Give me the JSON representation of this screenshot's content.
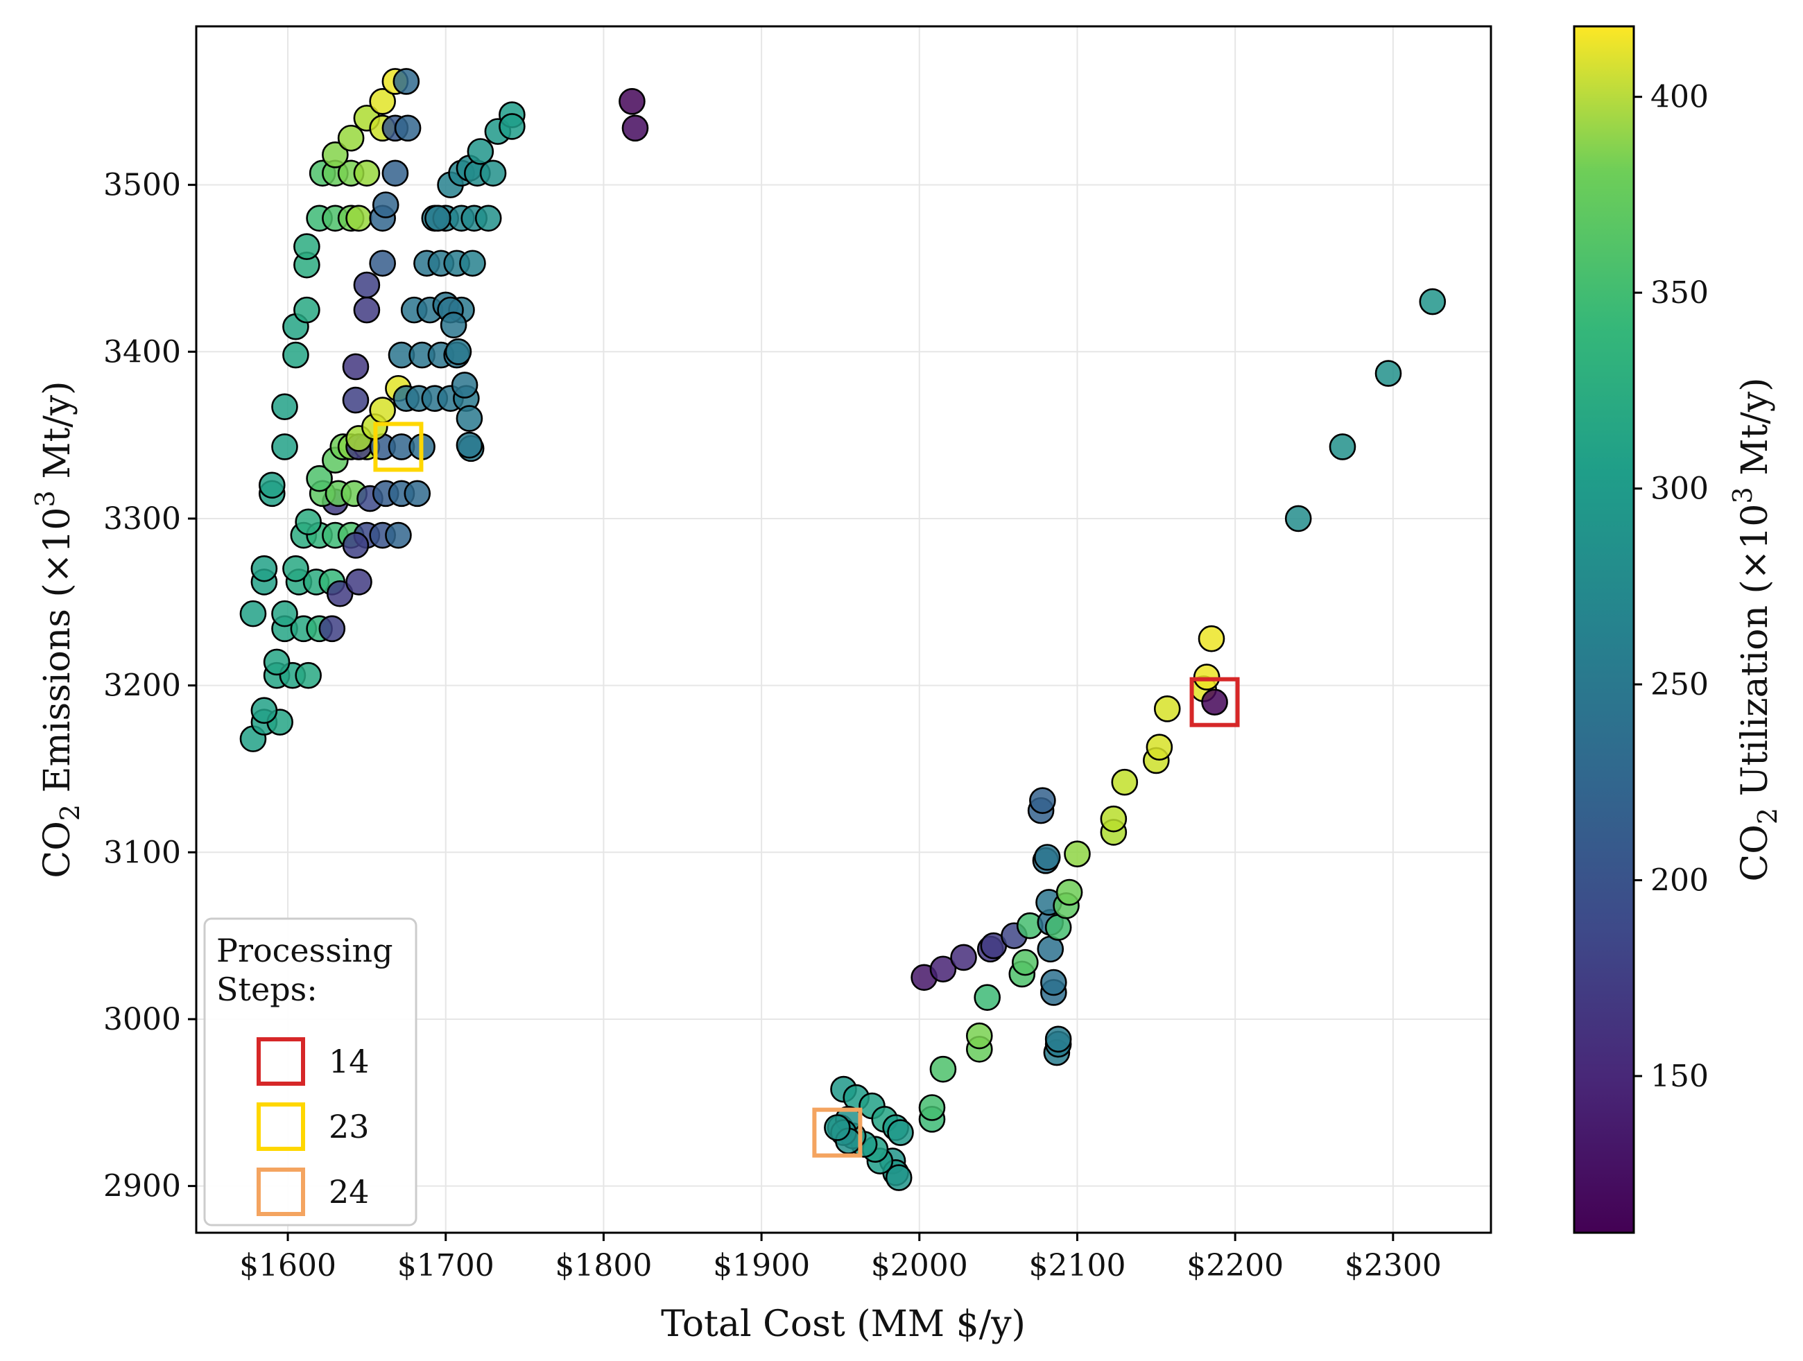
{
  "chart_data": {
    "type": "scatter",
    "title": "",
    "xlabel": "Total Cost (MM $/y)",
    "ylabel": {
      "prefix": "CO",
      "sub": "2",
      "mid": " Emissions (×10",
      "sup": "3",
      "suffix": " Mt/y)"
    },
    "xlim": [
      1542,
      2362
    ],
    "ylim": [
      2872,
      3595
    ],
    "xticks": [
      1600,
      1700,
      1800,
      1900,
      2000,
      2100,
      2200,
      2300
    ],
    "xtick_labels": [
      "$1600",
      "$1700",
      "$1800",
      "$1900",
      "$2000",
      "$2100",
      "$2200",
      "$2300"
    ],
    "yticks": [
      2900,
      3000,
      3100,
      3200,
      3300,
      3400,
      3500
    ],
    "ytick_labels": [
      "2900",
      "3000",
      "3100",
      "3200",
      "3300",
      "3400",
      "3500"
    ],
    "grid": true,
    "colorbar": {
      "label": {
        "prefix": "CO",
        "sub": "2",
        "mid": " Utilization (×10",
        "sup": "3",
        "suffix": " Mt/y)"
      },
      "colormap": "viridis",
      "range": [
        110,
        418
      ],
      "ticks": [
        150,
        200,
        250,
        300,
        350,
        400
      ],
      "tick_labels": [
        "150",
        "200",
        "250",
        "300",
        "350",
        "400"
      ]
    },
    "legend": {
      "title": "Processing\nSteps:",
      "placement": "lower-left",
      "entries": [
        {
          "label": "14",
          "color": "#d62728",
          "x": 2187,
          "y": 3190
        },
        {
          "label": "23",
          "color": "#ffd700",
          "x": 1670,
          "y": 3343
        },
        {
          "label": "24",
          "color": "#f4a460",
          "x": 1948,
          "y": 2932
        }
      ]
    },
    "points": [
      [
        1578,
        3168,
        285
      ],
      [
        1585,
        3178,
        285
      ],
      [
        1595,
        3178,
        290
      ],
      [
        1585,
        3185,
        285
      ],
      [
        1593,
        3206,
        290
      ],
      [
        1603,
        3206,
        290
      ],
      [
        1613,
        3206,
        295
      ],
      [
        1593,
        3214,
        290
      ],
      [
        1598,
        3234,
        290
      ],
      [
        1610,
        3234,
        295
      ],
      [
        1620,
        3234,
        310
      ],
      [
        1628,
        3234,
        170
      ],
      [
        1578,
        3243,
        285
      ],
      [
        1598,
        3243,
        290
      ],
      [
        1585,
        3262,
        285
      ],
      [
        1607,
        3262,
        295
      ],
      [
        1618,
        3262,
        300
      ],
      [
        1628,
        3262,
        315
      ],
      [
        1633,
        3255,
        165
      ],
      [
        1645,
        3262,
        165
      ],
      [
        1585,
        3270,
        285
      ],
      [
        1605,
        3270,
        295
      ],
      [
        1610,
        3290,
        300
      ],
      [
        1620,
        3290,
        310
      ],
      [
        1630,
        3290,
        320
      ],
      [
        1640,
        3290,
        330
      ],
      [
        1650,
        3290,
        180
      ],
      [
        1660,
        3290,
        190
      ],
      [
        1670,
        3290,
        210
      ],
      [
        1613,
        3298,
        300
      ],
      [
        1643,
        3284,
        170
      ],
      [
        1630,
        3310,
        165
      ],
      [
        1590,
        3315,
        285
      ],
      [
        1590,
        3320,
        285
      ],
      [
        1622,
        3315,
        340
      ],
      [
        1632,
        3315,
        345
      ],
      [
        1642,
        3315,
        350
      ],
      [
        1652,
        3312,
        180
      ],
      [
        1662,
        3315,
        200
      ],
      [
        1672,
        3315,
        210
      ],
      [
        1682,
        3315,
        215
      ],
      [
        1620,
        3324,
        330
      ],
      [
        1630,
        3335,
        340
      ],
      [
        1635,
        3343,
        350
      ],
      [
        1640,
        3343,
        360
      ],
      [
        1650,
        3343,
        380
      ],
      [
        1645,
        3343,
        165
      ],
      [
        1660,
        3343,
        200
      ],
      [
        1672,
        3343,
        210
      ],
      [
        1685,
        3343,
        220
      ],
      [
        1645,
        3348,
        375
      ],
      [
        1655,
        3355,
        390
      ],
      [
        1660,
        3365,
        400
      ],
      [
        1670,
        3378,
        405
      ],
      [
        1675,
        3372,
        230
      ],
      [
        1683,
        3372,
        230
      ],
      [
        1693,
        3372,
        230
      ],
      [
        1703,
        3372,
        230
      ],
      [
        1713,
        3372,
        235
      ],
      [
        1598,
        3343,
        285
      ],
      [
        1598,
        3367,
        285
      ],
      [
        1643,
        3371,
        170
      ],
      [
        1643,
        3391,
        160
      ],
      [
        1605,
        3398,
        290
      ],
      [
        1605,
        3415,
        290
      ],
      [
        1612,
        3425,
        295
      ],
      [
        1672,
        3398,
        230
      ],
      [
        1685,
        3398,
        230
      ],
      [
        1697,
        3398,
        230
      ],
      [
        1707,
        3398,
        230
      ],
      [
        1708,
        3400,
        235
      ],
      [
        1712,
        3380,
        230
      ],
      [
        1715,
        3360,
        235
      ],
      [
        1716,
        3342,
        240
      ],
      [
        1715,
        3344,
        235
      ],
      [
        1680,
        3425,
        230
      ],
      [
        1690,
        3425,
        230
      ],
      [
        1700,
        3428,
        230
      ],
      [
        1710,
        3425,
        235
      ],
      [
        1703,
        3425,
        230
      ],
      [
        1705,
        3416,
        230
      ],
      [
        1650,
        3425,
        165
      ],
      [
        1650,
        3440,
        170
      ],
      [
        1660,
        3453,
        200
      ],
      [
        1688,
        3453,
        230
      ],
      [
        1697,
        3453,
        235
      ],
      [
        1707,
        3453,
        240
      ],
      [
        1717,
        3453,
        245
      ],
      [
        1612,
        3452,
        300
      ],
      [
        1612,
        3463,
        300
      ],
      [
        1620,
        3480,
        320
      ],
      [
        1630,
        3480,
        330
      ],
      [
        1640,
        3480,
        350
      ],
      [
        1645,
        3480,
        370
      ],
      [
        1660,
        3480,
        210
      ],
      [
        1662,
        3488,
        210
      ],
      [
        1693,
        3480,
        240
      ],
      [
        1700,
        3480,
        245
      ],
      [
        1710,
        3480,
        250
      ],
      [
        1718,
        3480,
        255
      ],
      [
        1727,
        3480,
        265
      ],
      [
        1695,
        3480,
        240
      ],
      [
        1703,
        3500,
        245
      ],
      [
        1710,
        3507,
        250
      ],
      [
        1715,
        3510,
        255
      ],
      [
        1720,
        3507,
        260
      ],
      [
        1730,
        3507,
        265
      ],
      [
        1722,
        3520,
        270
      ],
      [
        1733,
        3532,
        275
      ],
      [
        1742,
        3542,
        280
      ],
      [
        1742,
        3535,
        280
      ],
      [
        1622,
        3507,
        330
      ],
      [
        1630,
        3507,
        345
      ],
      [
        1640,
        3507,
        355
      ],
      [
        1650,
        3507,
        370
      ],
      [
        1630,
        3518,
        360
      ],
      [
        1640,
        3528,
        370
      ],
      [
        1650,
        3540,
        380
      ],
      [
        1660,
        3534,
        395
      ],
      [
        1668,
        3534,
        195
      ],
      [
        1676,
        3534,
        210
      ],
      [
        1668,
        3507,
        205
      ],
      [
        1660,
        3550,
        405
      ],
      [
        1668,
        3562,
        410
      ],
      [
        1675,
        3562,
        215
      ],
      [
        1818,
        3550,
        115
      ],
      [
        1820,
        3534,
        120
      ],
      [
        2003,
        3025,
        130
      ],
      [
        2015,
        3030,
        140
      ],
      [
        2028,
        3037,
        150
      ],
      [
        2045,
        3042,
        160
      ],
      [
        2047,
        3044,
        165
      ],
      [
        2060,
        3050,
        175
      ],
      [
        2070,
        3056,
        325
      ],
      [
        2065,
        3027,
        330
      ],
      [
        2067,
        3034,
        335
      ],
      [
        2085,
        3016,
        220
      ],
      [
        2085,
        3022,
        225
      ],
      [
        2083,
        3042,
        225
      ],
      [
        2083,
        3058,
        225
      ],
      [
        2082,
        3070,
        230
      ],
      [
        2080,
        3095,
        225
      ],
      [
        2081,
        3097,
        230
      ],
      [
        2077,
        3125,
        205
      ],
      [
        2078,
        3131,
        205
      ],
      [
        2088,
        3055,
        325
      ],
      [
        2093,
        3068,
        340
      ],
      [
        2095,
        3076,
        350
      ],
      [
        2100,
        3099,
        365
      ],
      [
        2087,
        2980,
        240
      ],
      [
        2088,
        2985,
        240
      ],
      [
        2088,
        2988,
        240
      ],
      [
        2043,
        3013,
        320
      ],
      [
        2038,
        2982,
        345
      ],
      [
        2038,
        2990,
        355
      ],
      [
        2015,
        2970,
        330
      ],
      [
        2008,
        2940,
        320
      ],
      [
        2008,
        2947,
        325
      ],
      [
        2123,
        3112,
        380
      ],
      [
        2123,
        3120,
        385
      ],
      [
        2130,
        3142,
        390
      ],
      [
        2150,
        3155,
        395
      ],
      [
        2152,
        3163,
        400
      ],
      [
        2157,
        3186,
        400
      ],
      [
        2180,
        3198,
        405
      ],
      [
        2182,
        3205,
        410
      ],
      [
        2185,
        3228,
        410
      ],
      [
        2187,
        3190,
        115
      ],
      [
        2240,
        3300,
        260
      ],
      [
        2268,
        3343,
        265
      ],
      [
        2297,
        3387,
        265
      ],
      [
        2325,
        3430,
        270
      ],
      [
        1952,
        2958,
        275
      ],
      [
        1960,
        2953,
        280
      ],
      [
        1970,
        2948,
        285
      ],
      [
        1978,
        2940,
        290
      ],
      [
        1985,
        2935,
        280
      ],
      [
        1988,
        2932,
        275
      ],
      [
        1983,
        2915,
        270
      ],
      [
        1985,
        2908,
        275
      ],
      [
        1987,
        2905,
        270
      ],
      [
        1975,
        2915,
        280
      ],
      [
        1972,
        2922,
        285
      ],
      [
        1965,
        2925,
        280
      ],
      [
        1958,
        2930,
        275
      ],
      [
        1950,
        2935,
        270
      ],
      [
        1955,
        2940,
        265
      ],
      [
        1952,
        2932,
        260
      ],
      [
        1955,
        2927,
        265
      ],
      [
        1948,
        2935,
        270
      ]
    ]
  }
}
